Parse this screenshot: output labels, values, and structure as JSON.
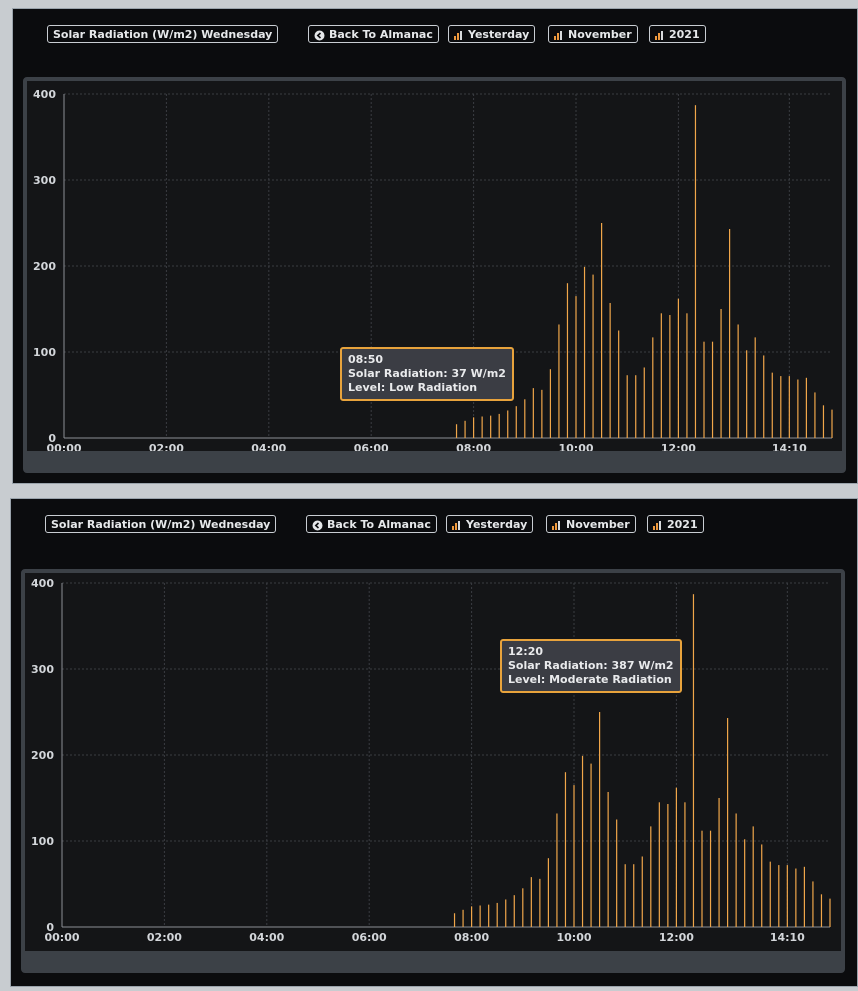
{
  "toolbar": {
    "title": "Solar Radiation (W/m2) Wednesday",
    "back_label": "Back To Almanac",
    "yesterday_label": "Yesterday",
    "month_label": "November",
    "year_label": "2021"
  },
  "colors": {
    "bar": "#f0a64a",
    "tooltip_border": "#e8a33c",
    "background": "#141517"
  },
  "tooltips": [
    {
      "time": "08:50",
      "value_line": "Solar Radiation:  37 W/m2",
      "level_line": "Level:  Low Radiation"
    },
    {
      "time": "12:20",
      "value_line": "Solar Radiation:  387 W/m2",
      "level_line": "Level:  Moderate Radiation"
    }
  ],
  "chart_data": [
    {
      "type": "bar",
      "title": "",
      "xlabel": "",
      "ylabel": "",
      "x_unit": "hours",
      "xlim": [
        "00:00",
        "15:00"
      ],
      "ylim": [
        0,
        400
      ],
      "y_ticks": [
        0,
        100,
        200,
        300,
        400
      ],
      "x_ticks": [
        "00:00",
        "02:00",
        "04:00",
        "06:00",
        "08:00",
        "10:00",
        "12:00",
        "14:10"
      ],
      "grid": true,
      "x": [
        "07:40",
        "07:50",
        "08:00",
        "08:10",
        "08:20",
        "08:30",
        "08:40",
        "08:50",
        "09:00",
        "09:10",
        "09:20",
        "09:30",
        "09:40",
        "09:50",
        "10:00",
        "10:10",
        "10:20",
        "10:30",
        "10:40",
        "10:50",
        "11:00",
        "11:10",
        "11:20",
        "11:30",
        "11:40",
        "11:50",
        "12:00",
        "12:10",
        "12:20",
        "12:30",
        "12:40",
        "12:50",
        "13:00",
        "13:10",
        "13:20",
        "13:30",
        "13:40",
        "13:50",
        "14:00",
        "14:10",
        "14:20",
        "14:30",
        "14:40",
        "14:50",
        "15:00"
      ],
      "values": [
        16,
        20,
        24,
        25,
        26,
        28,
        32,
        37,
        45,
        58,
        56,
        80,
        132,
        180,
        165,
        199,
        190,
        250,
        157,
        125,
        73,
        73,
        82,
        117,
        145,
        143,
        162,
        145,
        387,
        112,
        112,
        150,
        243,
        132,
        102,
        117,
        96,
        76,
        72,
        72,
        68,
        70,
        53,
        38,
        33
      ]
    },
    {
      "type": "bar",
      "title": "",
      "xlabel": "",
      "ylabel": "",
      "x_unit": "hours",
      "xlim": [
        "00:00",
        "15:00"
      ],
      "ylim": [
        0,
        400
      ],
      "y_ticks": [
        0,
        100,
        200,
        300,
        400
      ],
      "x_ticks": [
        "00:00",
        "02:00",
        "04:00",
        "06:00",
        "08:00",
        "10:00",
        "12:00",
        "14:10"
      ],
      "grid": true,
      "x": [
        "07:40",
        "07:50",
        "08:00",
        "08:10",
        "08:20",
        "08:30",
        "08:40",
        "08:50",
        "09:00",
        "09:10",
        "09:20",
        "09:30",
        "09:40",
        "09:50",
        "10:00",
        "10:10",
        "10:20",
        "10:30",
        "10:40",
        "10:50",
        "11:00",
        "11:10",
        "11:20",
        "11:30",
        "11:40",
        "11:50",
        "12:00",
        "12:10",
        "12:20",
        "12:30",
        "12:40",
        "12:50",
        "13:00",
        "13:10",
        "13:20",
        "13:30",
        "13:40",
        "13:50",
        "14:00",
        "14:10",
        "14:20",
        "14:30",
        "14:40",
        "14:50",
        "15:00"
      ],
      "values": [
        16,
        20,
        24,
        25,
        26,
        28,
        32,
        37,
        45,
        58,
        56,
        80,
        132,
        180,
        165,
        199,
        190,
        250,
        157,
        125,
        73,
        73,
        82,
        117,
        145,
        143,
        162,
        145,
        387,
        112,
        112,
        150,
        243,
        132,
        102,
        117,
        96,
        76,
        72,
        72,
        68,
        70,
        53,
        38,
        33
      ]
    }
  ]
}
